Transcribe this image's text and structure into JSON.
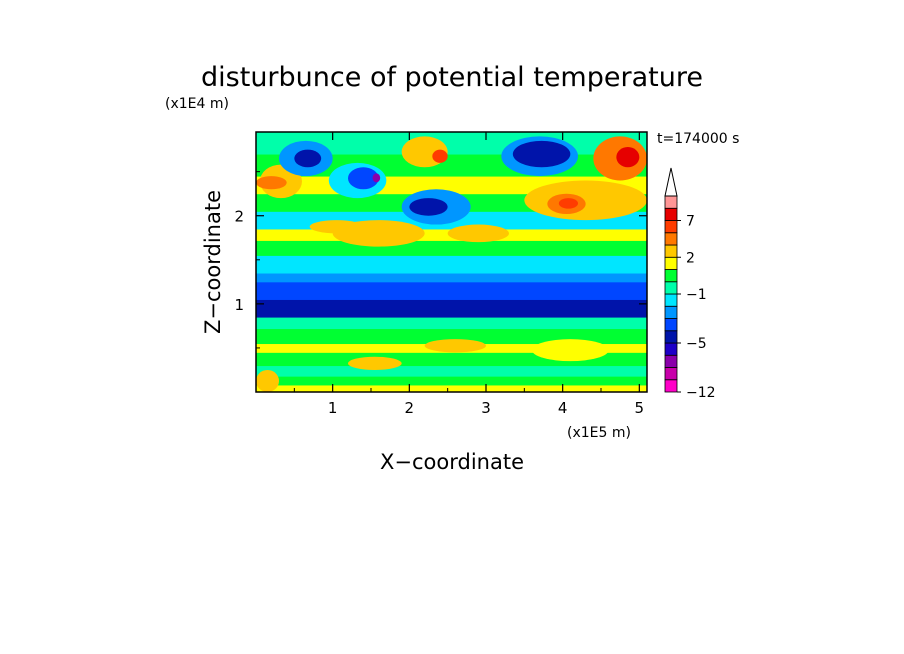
{
  "chart_data": {
    "type": "heatmap",
    "title": "disturbunce of potential temperature",
    "xlabel": "X−coordinate",
    "ylabel": "Z−coordinate",
    "x_unit": "(x1E5 m)",
    "y_unit": "(x1E4 m)",
    "time_label": "t=174000 s",
    "xlim": [
      0,
      5.1
    ],
    "ylim": [
      0,
      2.95
    ],
    "x_ticks": [
      "1",
      "2",
      "3",
      "4",
      "5"
    ],
    "x_tick_values": [
      1,
      2,
      3,
      4,
      5
    ],
    "y_ticks": [
      "1",
      "2"
    ],
    "y_tick_values": [
      1,
      2
    ],
    "grid": false,
    "colorbar": {
      "position": "right",
      "extend": "max",
      "levels": [
        -12,
        -10,
        -8,
        -6,
        -5,
        -4,
        -3,
        -2,
        -1,
        0,
        1,
        2,
        3,
        5,
        7,
        9,
        11
      ],
      "colors": [
        "#ff00c8",
        "#c800aa",
        "#8a00aa",
        "#1e00c8",
        "#0014aa",
        "#0046ff",
        "#0096ff",
        "#00e6ff",
        "#00ffaa",
        "#00ff32",
        "#ffff00",
        "#ffc800",
        "#ff7800",
        "#ff3c00",
        "#e60000",
        "#ff9696",
        "#ffffff"
      ],
      "labels": [
        "7",
        "2",
        "−1",
        "−5",
        "−12"
      ],
      "label_values": [
        7,
        2,
        -1,
        -5,
        -12
      ]
    },
    "bands": [
      {
        "z0": 0.0,
        "z1": 0.08,
        "value": 1.0
      },
      {
        "z0": 0.08,
        "z1": 0.18,
        "value": 0.4
      },
      {
        "z0": 0.18,
        "z1": 0.3,
        "value": -0.5
      },
      {
        "z0": 0.3,
        "z1": 0.45,
        "value": 0.4
      },
      {
        "z0": 0.45,
        "z1": 0.55,
        "value": 1.0
      },
      {
        "z0": 0.55,
        "z1": 0.72,
        "value": 0.4
      },
      {
        "z0": 0.72,
        "z1": 0.85,
        "value": -0.5
      },
      {
        "z0": 0.85,
        "z1": 1.05,
        "value": -4.2
      },
      {
        "z0": 1.05,
        "z1": 1.25,
        "value": -3.6
      },
      {
        "z0": 1.25,
        "z1": 1.35,
        "value": -2.5
      },
      {
        "z0": 1.35,
        "z1": 1.55,
        "value": -1.5
      },
      {
        "z0": 1.55,
        "z1": 1.72,
        "value": 0.5
      },
      {
        "z0": 1.72,
        "z1": 1.85,
        "value": 1.5
      },
      {
        "z0": 1.85,
        "z1": 2.05,
        "value": -1.5
      },
      {
        "z0": 2.05,
        "z1": 2.25,
        "value": 0.5
      },
      {
        "z0": 2.25,
        "z1": 2.45,
        "value": 1.5
      },
      {
        "z0": 2.45,
        "z1": 2.7,
        "value": 0.5
      },
      {
        "z0": 2.7,
        "z1": 2.95,
        "value": -0.5
      }
    ],
    "features": [
      {
        "x0": 0.05,
        "x1": 0.6,
        "z0": 2.2,
        "z1": 2.58,
        "value": 2.5
      },
      {
        "x0": 0.0,
        "x1": 0.4,
        "z0": 2.3,
        "z1": 2.45,
        "value": 4.0
      },
      {
        "x0": 0.3,
        "x1": 1.0,
        "z0": 2.45,
        "z1": 2.85,
        "value": -3.0
      },
      {
        "x0": 0.5,
        "x1": 0.85,
        "z0": 2.55,
        "z1": 2.75,
        "value": -4.5
      },
      {
        "x0": 0.95,
        "x1": 1.7,
        "z0": 2.2,
        "z1": 2.6,
        "value": -2.0
      },
      {
        "x0": 1.2,
        "x1": 1.6,
        "z0": 2.3,
        "z1": 2.55,
        "value": -4.0
      },
      {
        "x0": 1.52,
        "x1": 1.62,
        "z0": 2.38,
        "z1": 2.48,
        "value": -6.5
      },
      {
        "x0": 1.9,
        "x1": 2.5,
        "z0": 2.55,
        "z1": 2.9,
        "value": 2.5
      },
      {
        "x0": 2.3,
        "x1": 2.5,
        "z0": 2.6,
        "z1": 2.75,
        "value": 6.0
      },
      {
        "x0": 1.9,
        "x1": 2.8,
        "z0": 1.9,
        "z1": 2.3,
        "value": -2.5
      },
      {
        "x0": 2.0,
        "x1": 2.5,
        "z0": 2.0,
        "z1": 2.2,
        "value": -4.5
      },
      {
        "x0": 3.2,
        "x1": 4.2,
        "z0": 2.45,
        "z1": 2.9,
        "value": -3.0
      },
      {
        "x0": 3.35,
        "x1": 4.1,
        "z0": 2.55,
        "z1": 2.85,
        "value": -4.5
      },
      {
        "x0": 3.5,
        "x1": 5.1,
        "z0": 1.95,
        "z1": 2.4,
        "value": 2.5
      },
      {
        "x0": 3.8,
        "x1": 4.3,
        "z0": 2.02,
        "z1": 2.25,
        "value": 4.0
      },
      {
        "x0": 3.95,
        "x1": 4.2,
        "z0": 2.08,
        "z1": 2.2,
        "value": 6.0
      },
      {
        "x0": 4.4,
        "x1": 5.1,
        "z0": 2.4,
        "z1": 2.9,
        "value": 4.0
      },
      {
        "x0": 4.7,
        "x1": 5.0,
        "z0": 2.55,
        "z1": 2.78,
        "value": 8.0
      },
      {
        "x0": 1.0,
        "x1": 2.2,
        "z0": 1.65,
        "z1": 1.95,
        "value": 2.5
      },
      {
        "x0": 2.5,
        "x1": 3.3,
        "z0": 1.7,
        "z1": 1.9,
        "value": 2.5
      },
      {
        "x0": 0.7,
        "x1": 1.4,
        "z0": 1.8,
        "z1": 1.95,
        "value": 2.5
      },
      {
        "x0": 0.0,
        "x1": 0.3,
        "z0": 0.0,
        "z1": 0.25,
        "value": 2.5
      },
      {
        "x0": 2.2,
        "x1": 3.0,
        "z0": 0.45,
        "z1": 0.6,
        "value": 2.0
      },
      {
        "x0": 3.6,
        "x1": 4.6,
        "z0": 0.35,
        "z1": 0.6,
        "value": 1.5
      },
      {
        "x0": 1.2,
        "x1": 1.9,
        "z0": 0.25,
        "z1": 0.4,
        "value": 2.0
      }
    ]
  }
}
